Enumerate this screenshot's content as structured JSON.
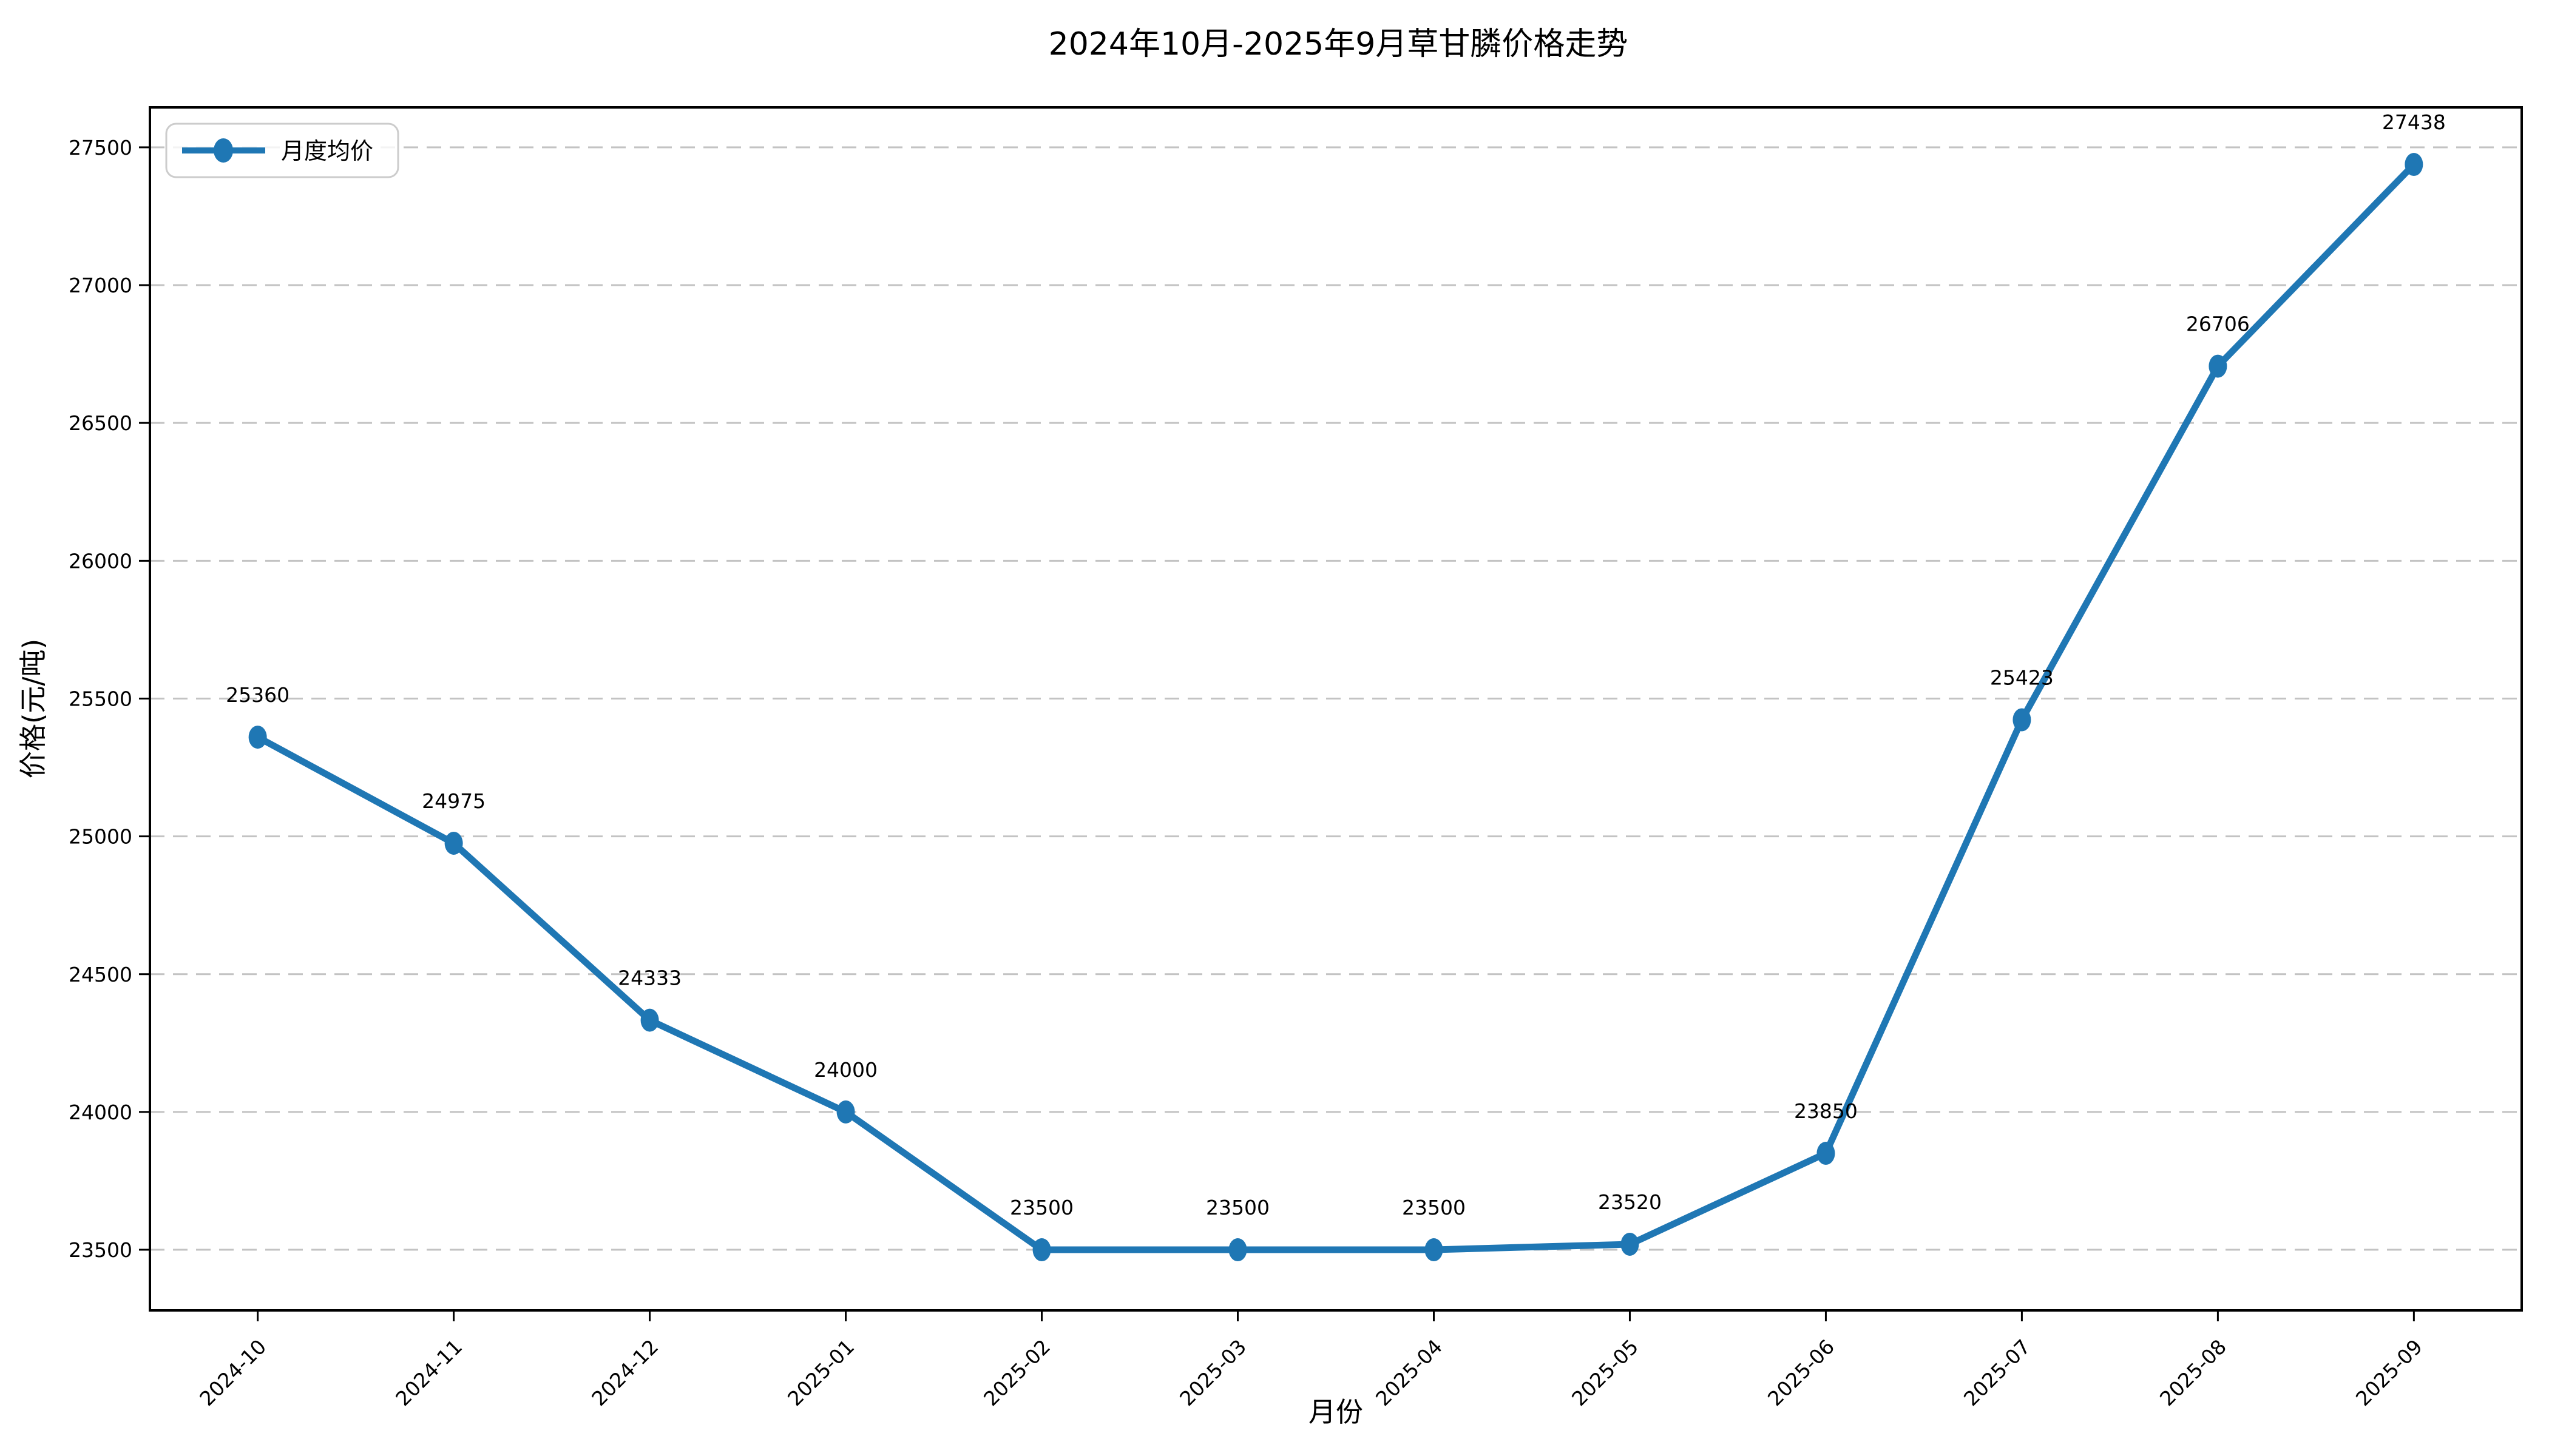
{
  "chart_data": {
    "type": "line",
    "title": "2024年10月-2025年9月草甘膦价格走势",
    "xlabel": "月份",
    "ylabel": "价格(元/吨)",
    "categories": [
      "2024-10",
      "2024-11",
      "2024-12",
      "2025-01",
      "2025-02",
      "2025-03",
      "2025-04",
      "2025-05",
      "2025-06",
      "2025-07",
      "2025-08",
      "2025-09"
    ],
    "series": [
      {
        "name": "月度均价",
        "values": [
          25360,
          24975,
          24333,
          24000,
          23500,
          23500,
          23500,
          23520,
          23850,
          25423,
          26706,
          27438
        ]
      }
    ],
    "point_labels": [
      "25360",
      "24975",
      "24333",
      "24000",
      "23500",
      "23500",
      "23500",
      "23520",
      "23850",
      "25423",
      "26706",
      "27438"
    ],
    "yticks": [
      23500,
      24000,
      24500,
      25000,
      25500,
      26000,
      26500,
      27000,
      27500
    ],
    "ylim": [
      23280,
      27645
    ],
    "grid": "horizontal-dashed",
    "legend_position": "upper-left",
    "colors": {
      "series": "#1f77b4",
      "grid": "#c3c3c3",
      "axis": "#000000",
      "text": "#000000",
      "legend_border": "#cccccc",
      "background": "#ffffff"
    }
  }
}
